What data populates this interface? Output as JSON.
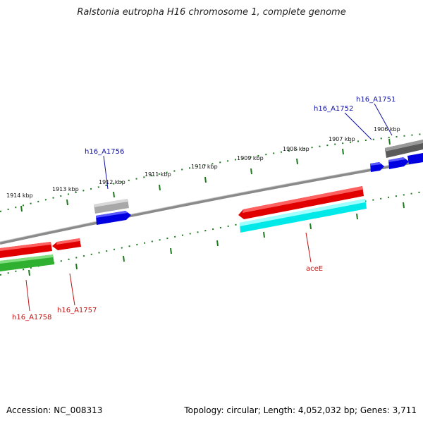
{
  "header": {
    "title": "Ralstonia eutropha H16 chromosome 1, complete genome"
  },
  "footer": {
    "accession": "Accession: NC_008313",
    "summary": "Topology: circular; Length: 4,052,032 bp; Genes: 3,711"
  },
  "ticks": {
    "outer": [
      {
        "label": "1906 kbp"
      },
      {
        "label": "1907 kbp"
      },
      {
        "label": "1908 kbp"
      },
      {
        "label": "1909 kbp"
      },
      {
        "label": "1910 kbp"
      },
      {
        "label": "1911 kbp"
      },
      {
        "label": "1912 kbp"
      },
      {
        "label": "1913 kbp"
      },
      {
        "label": "1914 kbp"
      }
    ]
  },
  "genes": {
    "labels": [
      {
        "name": "h16_A1751",
        "strand": "forward"
      },
      {
        "name": "h16_A1752",
        "strand": "forward"
      },
      {
        "name": "h16_A1756",
        "strand": "forward"
      },
      {
        "name": "aceE",
        "strand": "reverse"
      },
      {
        "name": "h16_A1757",
        "strand": "reverse"
      },
      {
        "name": "h16_A1758",
        "strand": "reverse"
      }
    ]
  },
  "colors": {
    "backbone": "#7a7a7a",
    "tick": "#1f7a1f",
    "forward_cds": "#0000e0",
    "forward_gene_gray": "#a8a8a8",
    "forward_gene_dark": "#5a5a5a",
    "reverse_cds": "#e00000",
    "reverse_cyan": "#00e8e8",
    "reverse_green": "#30b030",
    "label_blue": "#1010a8",
    "label_red": "#c01010"
  }
}
